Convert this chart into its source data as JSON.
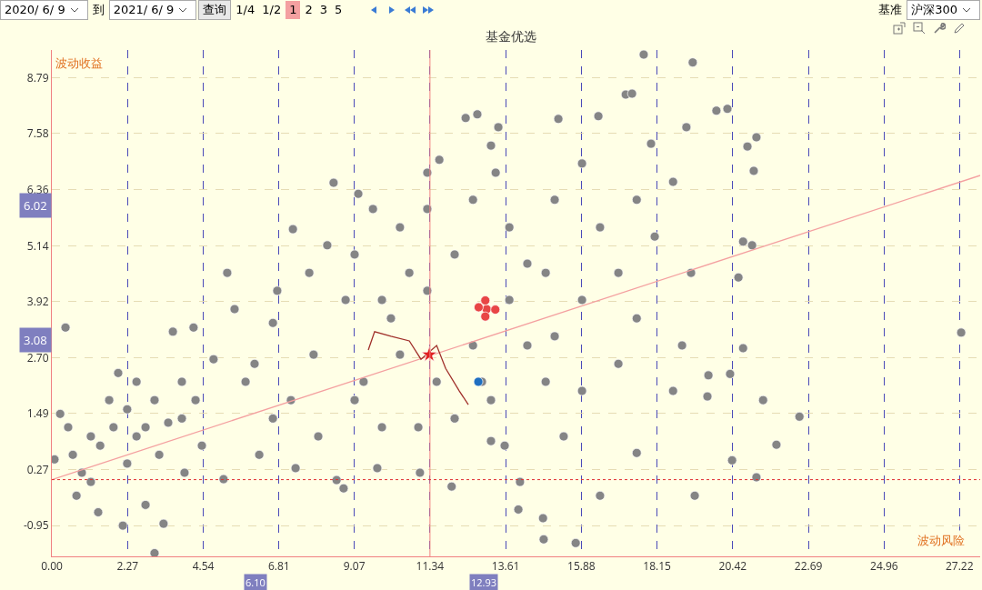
{
  "chart_data": {
    "type": "scatter",
    "title": "基金优选",
    "xlabel": "波动风险",
    "ylabel": "波动收益",
    "xlim": [
      0,
      27.84
    ],
    "ylim": [
      -1.62,
      9.4
    ],
    "xticks": [
      {
        "value": 0,
        "label": "0.00"
      },
      2.27,
      4.54,
      6.81,
      9.07,
      11.34,
      13.61,
      15.88,
      18.15,
      20.42,
      22.69,
      24.96,
      27.22
    ],
    "yticks": [
      -0.95,
      0.27,
      1.49,
      {
        "value": 2.7,
        "label": "2.70"
      },
      3.92,
      5.14,
      6.36,
      7.58,
      8.79
    ],
    "grid": true,
    "marker": "circle",
    "ref_lines": [
      {
        "axis": "x",
        "value": 11.34,
        "color": "#f08080",
        "line_style": "solid"
      },
      {
        "axis": "y",
        "value": 0.05,
        "color": "#e03030",
        "line_style": "dotted"
      }
    ],
    "annotations": [
      "2020/ 6/ 9",
      "到",
      "2021/ 6/ 9",
      "查询",
      "1/4",
      "1/2",
      "1",
      "2",
      "3",
      "5",
      "基准",
      "沪深300",
      "6.02",
      "3.08",
      "6.10",
      "12.93"
    ],
    "series": [
      {
        "color": "#858585",
        "x": [
          17.75,
          19.22,
          0.41,
          27.27,
          22.42,
          21.73,
          21.13,
          20.4,
          3.08,
          2.13,
          3.35,
          14.75,
          15.71,
          14.73,
          19.28,
          13.99,
          12.76,
          13.39,
          15.19,
          17.21,
          17.4,
          16.39,
          19.93,
          20.26,
          21.13,
          20.86,
          21.05,
          19.03,
          17.97,
          8.45,
          9.19,
          7.23,
          11.62,
          12.41,
          13.17,
          20.73,
          21.0,
          20.59,
          20.73,
          21.33,
          20.34,
          19.69,
          19.66,
          18.63,
          17.54,
          16.44,
          14.04,
          13.17,
          11.99,
          11.04,
          9.76,
          8.75,
          8.54,
          7.31,
          5.15,
          6.22,
          4.5,
          3.98,
          2.81,
          1.39,
          0.74,
          0.25,
          0.49,
          0.08,
          0.63,
          1.17,
          1.45,
          1.85,
          2.26,
          2.54,
          3.08,
          3.49,
          3.9,
          3.63,
          4.25,
          4.85,
          5.48,
          5.81,
          6.63,
          6.76,
          7.72,
          7.85,
          6.63,
          8.26,
          9.08,
          9.35,
          9.9,
          9.63,
          10.44,
          11.26,
          11.26,
          10.72,
          10.17,
          11.54,
          12.08,
          12.63,
          12.08,
          12.63,
          13.31,
          13.72,
          14.26,
          13.72,
          14.26,
          14.81,
          15.35,
          15.9,
          15.08,
          15.9,
          16.44,
          16.99,
          17.54,
          16.99,
          18.08,
          18.63,
          19.17,
          18.9,
          15.9,
          15.08,
          17.54,
          14.81,
          11.26,
          10.44,
          8.81,
          9.9,
          9.08,
          10.99,
          13.17,
          13.58,
          12.9,
          1.72,
          1.17,
          2.54,
          0.9,
          2.26,
          3.22,
          2.81,
          3.9,
          4.31,
          1.99,
          5.26,
          6.08,
          7.17,
          7.99
        ],
        "values": [
          9.3,
          9.13,
          3.36,
          3.25,
          1.42,
          0.81,
          0.1,
          0.47,
          -1.55,
          -0.95,
          -0.91,
          -1.25,
          -1.33,
          -0.79,
          -0.3,
          -0.6,
          8.0,
          7.72,
          7.9,
          8.43,
          8.45,
          7.96,
          8.08,
          8.12,
          7.5,
          7.3,
          6.77,
          7.72,
          7.36,
          6.51,
          6.27,
          5.5,
          7.01,
          7.92,
          7.32,
          5.23,
          5.15,
          4.45,
          2.91,
          1.78,
          2.35,
          2.32,
          1.86,
          1.98,
          0.63,
          -0.3,
          0.0,
          0.89,
          -0.1,
          0.2,
          0.3,
          -0.14,
          0.04,
          0.3,
          0.06,
          0.59,
          0.79,
          0.2,
          -0.5,
          -0.66,
          -0.3,
          1.48,
          1.19,
          0.49,
          0.59,
          0.0,
          0.79,
          1.19,
          1.58,
          2.18,
          1.78,
          1.29,
          2.18,
          3.27,
          3.36,
          2.67,
          3.76,
          2.18,
          3.46,
          4.16,
          4.55,
          2.77,
          1.38,
          5.15,
          4.95,
          2.18,
          1.19,
          5.94,
          5.54,
          6.73,
          5.94,
          4.55,
          3.56,
          2.18,
          1.38,
          2.97,
          4.95,
          6.14,
          6.73,
          5.54,
          4.75,
          3.96,
          2.97,
          2.18,
          0.99,
          1.98,
          6.14,
          6.93,
          5.54,
          4.55,
          3.56,
          2.57,
          5.34,
          6.53,
          4.55,
          2.97,
          3.96,
          3.17,
          6.14,
          4.55,
          4.16,
          2.77,
          3.96,
          3.96,
          1.78,
          1.19,
          1.78,
          0.79,
          2.18,
          1.78,
          0.99,
          0.99,
          0.2,
          0.4,
          0.59,
          1.19,
          1.38,
          1.78,
          2.37,
          4.55,
          2.57,
          1.78,
          0.99
        ]
      },
      {
        "type": "line",
        "marker": "none",
        "color": "#f4a0a0",
        "x": [
          0,
          27.84
        ],
        "values": [
          0.05,
          6.67
        ]
      },
      {
        "type": "line",
        "marker": "none",
        "color": "#a0302a",
        "x": [
          9.49,
          9.68,
          10.17,
          10.72,
          11.07,
          11.54,
          11.81,
          12.22,
          12.49
        ],
        "values": [
          2.87,
          3.27,
          3.17,
          3.07,
          2.67,
          2.97,
          2.47,
          1.98,
          1.68
        ]
      },
      {
        "color": "#e84545",
        "x": [
          13.04,
          12.8,
          13.3,
          13.0,
          13.0
        ],
        "values": [
          3.76,
          3.8,
          3.75,
          3.6,
          3.95
        ]
      },
      {
        "color": "#1f6fc0",
        "x": [
          12.79
        ],
        "values": [
          2.18
        ]
      },
      {
        "color": "#e02020",
        "marker": "star",
        "x": [
          11.32
        ],
        "values": [
          2.77
        ]
      }
    ]
  }
}
